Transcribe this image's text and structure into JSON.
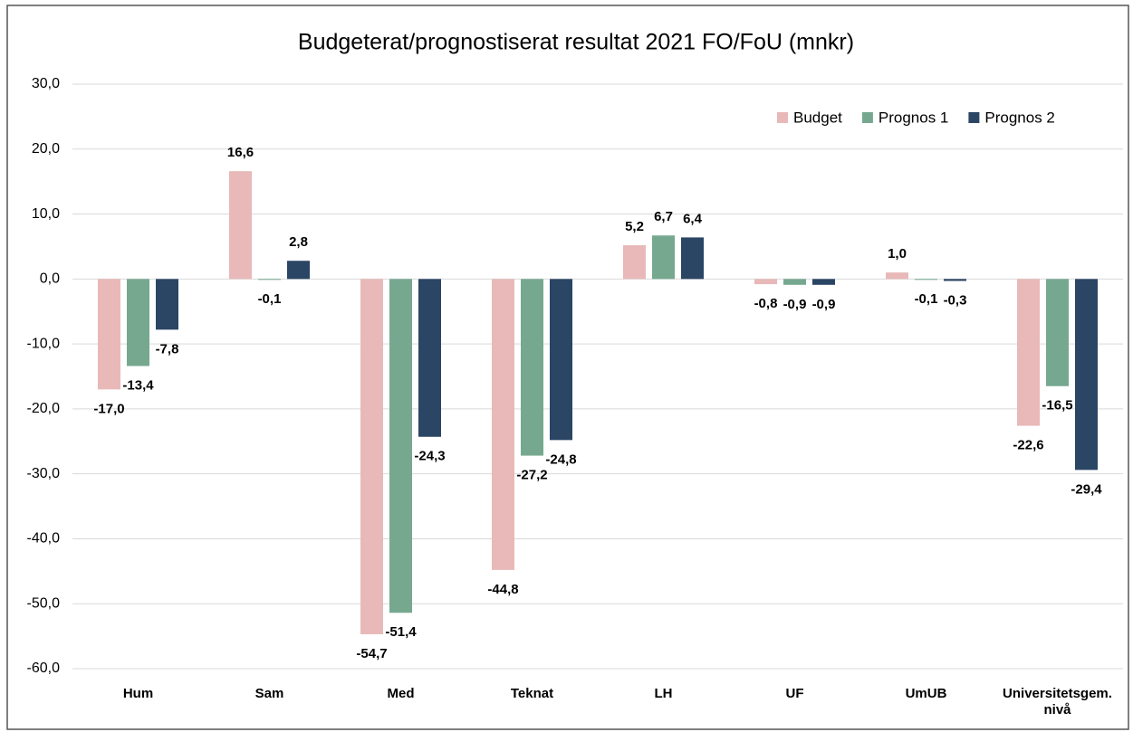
{
  "chart_data": {
    "type": "bar",
    "title": "Budgeterat/prognostiserat resultat 2021 FO/FoU (mnkr)",
    "categories": [
      "Hum",
      "Sam",
      "Med",
      "Teknat",
      "LH",
      "UF",
      "UmUB",
      "Universitetsgem. nivå"
    ],
    "series": [
      {
        "name": "Budget",
        "color": "#e8b9b8",
        "values": [
          -17.0,
          16.6,
          -54.7,
          -44.8,
          5.2,
          -0.8,
          1.0,
          -22.6
        ],
        "value_labels": [
          "-17,0",
          "16,6",
          "-54,7",
          "-44,8",
          "5,2",
          "-0,8",
          "1,0",
          "-22,6"
        ]
      },
      {
        "name": "Prognos 1",
        "color": "#76a890",
        "values": [
          -13.4,
          -0.1,
          -51.4,
          -27.2,
          6.7,
          -0.9,
          -0.1,
          -16.5
        ],
        "value_labels": [
          "-13,4",
          "-0,1",
          "-51,4",
          "-27,2",
          "6,7",
          "-0,9",
          "-0,1",
          "-16,5"
        ]
      },
      {
        "name": "Prognos 2",
        "color": "#2b4564",
        "values": [
          -7.8,
          2.8,
          -24.3,
          -24.8,
          6.4,
          -0.9,
          -0.3,
          -29.4
        ],
        "value_labels": [
          "-7,8",
          "2,8",
          "-24,3",
          "-24,8",
          "6,4",
          "-0,9",
          "-0,3",
          "-29,4"
        ]
      }
    ],
    "ylim": [
      -60,
      30
    ],
    "yticks": [
      {
        "value": -60,
        "label": "-60,0"
      },
      {
        "value": -50,
        "label": "-50,0"
      },
      {
        "value": -40,
        "label": "-40,0"
      },
      {
        "value": -30,
        "label": "-30,0"
      },
      {
        "value": -20,
        "label": "-20,0"
      },
      {
        "value": -10,
        "label": "-10,0"
      },
      {
        "value": 0,
        "label": "0,0"
      },
      {
        "value": 10,
        "label": "10,0"
      },
      {
        "value": 20,
        "label": "20,0"
      },
      {
        "value": 30,
        "label": "30,0"
      }
    ],
    "grid": true,
    "legend": "top-right"
  }
}
